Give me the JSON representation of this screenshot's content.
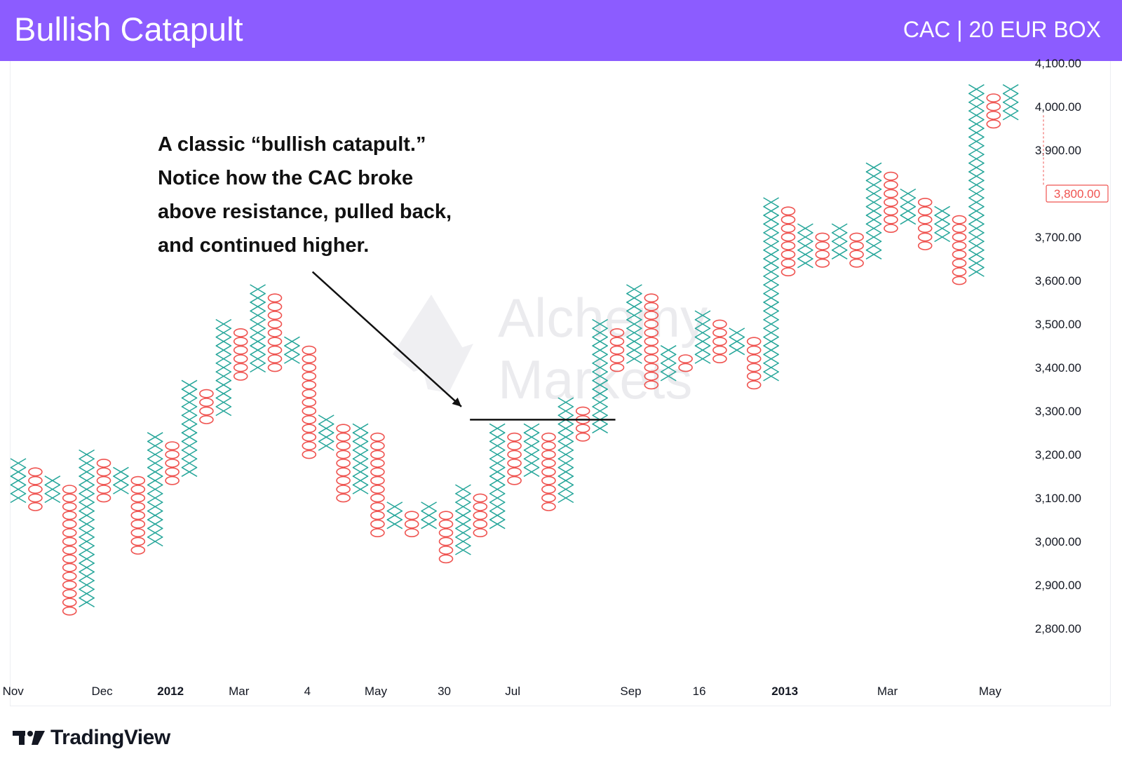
{
  "header": {
    "title": "Bullish Catapult",
    "subtitle": "CAC | 20 EUR BOX"
  },
  "annotation": {
    "lines": [
      "A classic “bullish catapult.”",
      "Notice how the CAC broke",
      "above resistance, pulled back,",
      "and continued higher."
    ]
  },
  "watermark": {
    "line1": "Alchemy",
    "line2": "Markets"
  },
  "branding": {
    "label": "TradingView",
    "icon": "tradingview-logo-icon"
  },
  "colors": {
    "banner": "#8c5cff",
    "x_color": "#26a69a",
    "o_color": "#ef5350",
    "price_marker": "#ef5350",
    "annotation_line": "#111111"
  },
  "chart_data": {
    "type": "point-and-figure",
    "box_size": 20,
    "currency": "EUR",
    "ylim": [
      2740,
      4100
    ],
    "y_ticks": [
      {
        "value": 4100,
        "label": "4,100.00"
      },
      {
        "value": 4000,
        "label": "4,000.00"
      },
      {
        "value": 3900,
        "label": "3,900.00"
      },
      {
        "value": 3700,
        "label": "3,700.00"
      },
      {
        "value": 3600,
        "label": "3,600.00"
      },
      {
        "value": 3500,
        "label": "3,500.00"
      },
      {
        "value": 3400,
        "label": "3,400.00"
      },
      {
        "value": 3300,
        "label": "3,300.00"
      },
      {
        "value": 3200,
        "label": "3,200.00"
      },
      {
        "value": 3100,
        "label": "3,100.00"
      },
      {
        "value": 3000,
        "label": "3,000.00"
      },
      {
        "value": 2900,
        "label": "2,900.00"
      },
      {
        "value": 2800,
        "label": "2,800.00"
      }
    ],
    "last_price": {
      "value": 3800,
      "label": "3,800.00"
    },
    "x_labels": [
      {
        "column": -0.3,
        "label": "Nov",
        "bold": false
      },
      {
        "column": 4.9,
        "label": "Dec",
        "bold": false
      },
      {
        "column": 8.9,
        "label": "2012",
        "bold": true
      },
      {
        "column": 12.9,
        "label": "Mar",
        "bold": false
      },
      {
        "column": 16.9,
        "label": "4",
        "bold": false
      },
      {
        "column": 20.9,
        "label": "May",
        "bold": false
      },
      {
        "column": 24.9,
        "label": "30",
        "bold": false
      },
      {
        "column": 28.9,
        "label": "Jul",
        "bold": false
      },
      {
        "column": 35.8,
        "label": "Sep",
        "bold": false
      },
      {
        "column": 39.8,
        "label": "16",
        "bold": false
      },
      {
        "column": 44.8,
        "label": "2013",
        "bold": true
      },
      {
        "column": 50.8,
        "label": "Mar",
        "bold": false
      },
      {
        "column": 56.8,
        "label": "May",
        "bold": false
      }
    ],
    "columns": [
      {
        "type": "X",
        "low": 3100,
        "high": 3180
      },
      {
        "type": "O",
        "low": 3080,
        "high": 3160
      },
      {
        "type": "X",
        "low": 3100,
        "high": 3140
      },
      {
        "type": "O",
        "low": 2840,
        "high": 3120
      },
      {
        "type": "X",
        "low": 2860,
        "high": 3200
      },
      {
        "type": "O",
        "low": 3100,
        "high": 3180
      },
      {
        "type": "X",
        "low": 3120,
        "high": 3160
      },
      {
        "type": "O",
        "low": 2980,
        "high": 3140
      },
      {
        "type": "X",
        "low": 3000,
        "high": 3240
      },
      {
        "type": "O",
        "low": 3140,
        "high": 3220
      },
      {
        "type": "X",
        "low": 3160,
        "high": 3360
      },
      {
        "type": "O",
        "low": 3280,
        "high": 3340
      },
      {
        "type": "X",
        "low": 3300,
        "high": 3500
      },
      {
        "type": "O",
        "low": 3380,
        "high": 3480
      },
      {
        "type": "X",
        "low": 3400,
        "high": 3580
      },
      {
        "type": "O",
        "low": 3400,
        "high": 3560
      },
      {
        "type": "X",
        "low": 3420,
        "high": 3460
      },
      {
        "type": "O",
        "low": 3200,
        "high": 3440
      },
      {
        "type": "X",
        "low": 3220,
        "high": 3280
      },
      {
        "type": "O",
        "low": 3100,
        "high": 3260
      },
      {
        "type": "X",
        "low": 3120,
        "high": 3260
      },
      {
        "type": "O",
        "low": 3020,
        "high": 3240
      },
      {
        "type": "X",
        "low": 3040,
        "high": 3080
      },
      {
        "type": "O",
        "low": 3020,
        "high": 3060
      },
      {
        "type": "X",
        "low": 3040,
        "high": 3080
      },
      {
        "type": "O",
        "low": 2960,
        "high": 3060
      },
      {
        "type": "X",
        "low": 2980,
        "high": 3120
      },
      {
        "type": "O",
        "low": 3020,
        "high": 3100
      },
      {
        "type": "X",
        "low": 3040,
        "high": 3260
      },
      {
        "type": "O",
        "low": 3140,
        "high": 3240
      },
      {
        "type": "X",
        "low": 3160,
        "high": 3260
      },
      {
        "type": "O",
        "low": 3080,
        "high": 3240
      },
      {
        "type": "X",
        "low": 3100,
        "high": 3320
      },
      {
        "type": "O",
        "low": 3240,
        "high": 3300
      },
      {
        "type": "X",
        "low": 3260,
        "high": 3500
      },
      {
        "type": "O",
        "low": 3400,
        "high": 3480
      },
      {
        "type": "X",
        "low": 3420,
        "high": 3580
      },
      {
        "type": "O",
        "low": 3360,
        "high": 3560
      },
      {
        "type": "X",
        "low": 3380,
        "high": 3440
      },
      {
        "type": "O",
        "low": 3400,
        "high": 3420
      },
      {
        "type": "X",
        "low": 3420,
        "high": 3520
      },
      {
        "type": "O",
        "low": 3420,
        "high": 3500
      },
      {
        "type": "X",
        "low": 3440,
        "high": 3480
      },
      {
        "type": "O",
        "low": 3360,
        "high": 3460
      },
      {
        "type": "X",
        "low": 3380,
        "high": 3780
      },
      {
        "type": "O",
        "low": 3620,
        "high": 3760
      },
      {
        "type": "X",
        "low": 3640,
        "high": 3720
      },
      {
        "type": "O",
        "low": 3640,
        "high": 3700
      },
      {
        "type": "X",
        "low": 3660,
        "high": 3720
      },
      {
        "type": "O",
        "low": 3640,
        "high": 3700
      },
      {
        "type": "X",
        "low": 3660,
        "high": 3860
      },
      {
        "type": "O",
        "low": 3720,
        "high": 3840
      },
      {
        "type": "X",
        "low": 3740,
        "high": 3800
      },
      {
        "type": "O",
        "low": 3680,
        "high": 3780
      },
      {
        "type": "X",
        "low": 3700,
        "high": 3760
      },
      {
        "type": "O",
        "low": 3600,
        "high": 3740
      },
      {
        "type": "X",
        "low": 3620,
        "high": 4040
      },
      {
        "type": "O",
        "low": 3960,
        "high": 4020
      },
      {
        "type": "X",
        "low": 3980,
        "high": 4040
      }
    ],
    "resistance_line": {
      "from_column": 26.4,
      "to_column": 34.9,
      "value": 3280
    },
    "arrow": {
      "from_column": 17.2,
      "from_value": 3620,
      "to_column": 25.9,
      "to_value": 3310
    }
  }
}
